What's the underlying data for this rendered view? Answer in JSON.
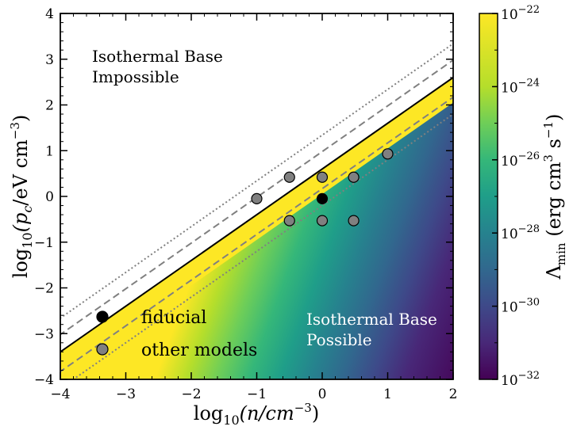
{
  "chart_data": {
    "type": "heatmap",
    "title": "",
    "xlabel_main": "log",
    "xlabel_sub": "10",
    "xlabel_rest": "(n/cm",
    "xlabel_exp": "−3",
    "xlabel_close": ")",
    "ylabel_main": "log",
    "ylabel_sub": "10",
    "ylabel_rest": "(p",
    "ylabel_sub2": "c",
    "ylabel_rest2": "/eV cm",
    "ylabel_exp": "−3",
    "ylabel_close": ")",
    "xlim": [
      -4,
      2
    ],
    "ylim": [
      -4,
      4
    ],
    "xticks": [
      {
        "value": -4,
        "label": "−4"
      },
      {
        "value": -3,
        "label": "−3"
      },
      {
        "value": -2,
        "label": "−2"
      },
      {
        "value": -1,
        "label": "−1"
      },
      {
        "value": 0,
        "label": "0"
      },
      {
        "value": 1,
        "label": "1"
      },
      {
        "value": 2,
        "label": "2"
      }
    ],
    "yticks": [
      {
        "value": -4,
        "label": "−4"
      },
      {
        "value": -3,
        "label": "−3"
      },
      {
        "value": -2,
        "label": "−2"
      },
      {
        "value": -1,
        "label": "−1"
      },
      {
        "value": 0,
        "label": "0"
      },
      {
        "value": 1,
        "label": "1"
      },
      {
        "value": 2,
        "label": "2"
      },
      {
        "value": 3,
        "label": "3"
      },
      {
        "value": 4,
        "label": "4"
      }
    ],
    "boundary": {
      "slope": 1.0,
      "intercept": 0.6,
      "fill_value_log": -22
    },
    "dashed_lines": [
      {
        "intercept": 0.98
      },
      {
        "intercept": 0.17
      }
    ],
    "dotted_lines": [
      {
        "intercept": 1.34
      },
      {
        "intercept": -0.2
      }
    ],
    "fiducial": [
      {
        "x": 0.0,
        "y": -0.05
      }
    ],
    "other_models": [
      {
        "x": -0.5,
        "y": 0.42
      },
      {
        "x": 0.0,
        "y": 0.42
      },
      {
        "x": 0.48,
        "y": 0.42
      },
      {
        "x": 1.0,
        "y": 0.93
      },
      {
        "x": -1.0,
        "y": -0.05
      },
      {
        "x": -0.5,
        "y": -0.53
      },
      {
        "x": 0.0,
        "y": -0.53
      },
      {
        "x": 0.48,
        "y": -0.53
      }
    ],
    "legend": {
      "fiducial": "fiducial",
      "other": "other models",
      "placement": "bottom-left"
    },
    "annotations": {
      "impossible": [
        "Isothermal Base",
        "Impossible"
      ],
      "possible": [
        "Isothermal Base",
        "Possible"
      ]
    },
    "colorbar": {
      "colormap": "viridis",
      "range_log": [
        -32,
        -22
      ],
      "ticks": [
        {
          "base": "10",
          "exp": "−22",
          "value": -22
        },
        {
          "base": "10",
          "exp": "−24",
          "value": -24
        },
        {
          "base": "10",
          "exp": "−26",
          "value": -26
        },
        {
          "base": "10",
          "exp": "−28",
          "value": -28
        },
        {
          "base": "10",
          "exp": "−30",
          "value": -30
        },
        {
          "base": "10",
          "exp": "−32",
          "value": -32
        }
      ],
      "label_main": "Λ",
      "label_sub": "min",
      "label_rest": " (erg cm",
      "label_exp1": "3",
      "label_rest2": " s",
      "label_exp2": "−1",
      "label_close": ")"
    },
    "colors": {
      "fiducial": "#000000",
      "other": "#808080",
      "boundary_line": "#000000",
      "ref_lines": "#808080",
      "annotation_dark": "#222222",
      "annotation_light": "#ffffff"
    }
  }
}
